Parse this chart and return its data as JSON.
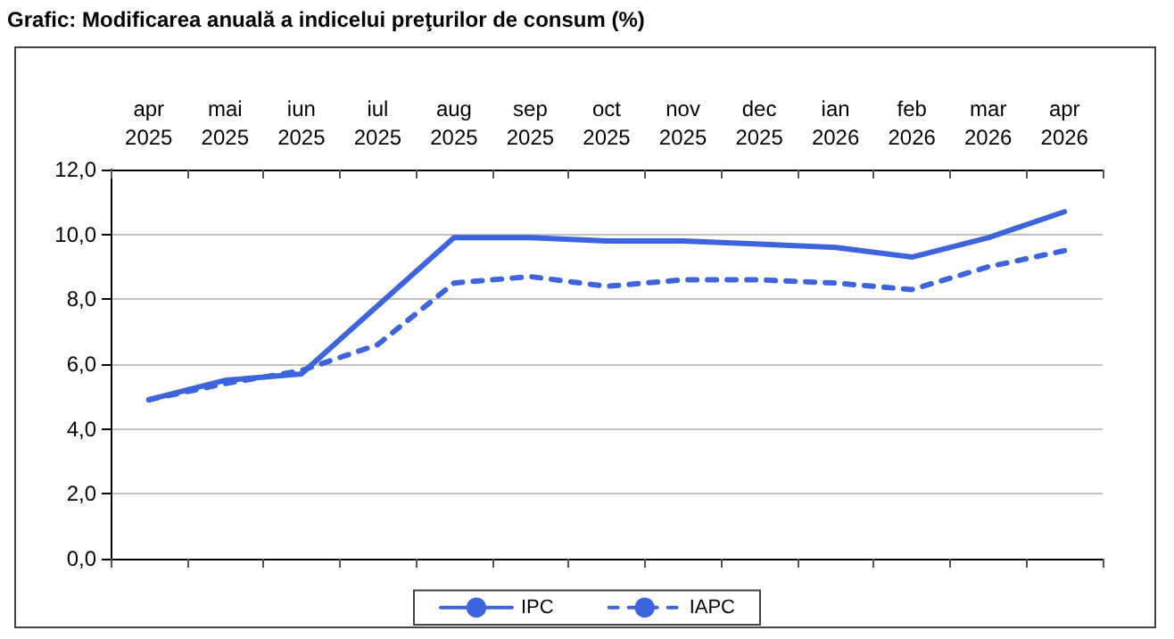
{
  "chart_data": {
    "type": "line",
    "title": "Grafic: Modificarea anuală a indicelui preţurilor de consum (%)",
    "categories": [
      "apr\n2025",
      "mai\n2025",
      "iun\n2025",
      "iul\n2025",
      "aug\n2025",
      "sep\n2025",
      "oct\n2025",
      "nov\n2025",
      "dec\n2025",
      "ian\n2026",
      "feb\n2026",
      "mar\n2026",
      "apr\n2026"
    ],
    "series": [
      {
        "name": "IPC",
        "color": "#3c64dc",
        "line_style": "solid",
        "values": [
          4.9,
          5.5,
          5.7,
          7.8,
          9.9,
          9.9,
          9.8,
          9.8,
          9.7,
          9.6,
          9.3,
          9.9,
          10.7
        ]
      },
      {
        "name": "IAPC",
        "color": "#3c64dc",
        "line_style": "dashed",
        "values": [
          4.9,
          5.4,
          5.8,
          6.6,
          8.5,
          8.7,
          8.4,
          8.6,
          8.6,
          8.5,
          8.3,
          9.0,
          9.5
        ]
      }
    ],
    "ylim": [
      0,
      12
    ],
    "yticks": [
      {
        "value": 0,
        "label": "0,0"
      },
      {
        "value": 2,
        "label": "2,0"
      },
      {
        "value": 4,
        "label": "4,0"
      },
      {
        "value": 6,
        "label": "6,0"
      },
      {
        "value": 8,
        "label": "8,0"
      },
      {
        "value": 10,
        "label": "10,0"
      },
      {
        "value": 12,
        "label": "12,0"
      }
    ],
    "grid": "y",
    "legend": "bottom",
    "marker": "none"
  }
}
